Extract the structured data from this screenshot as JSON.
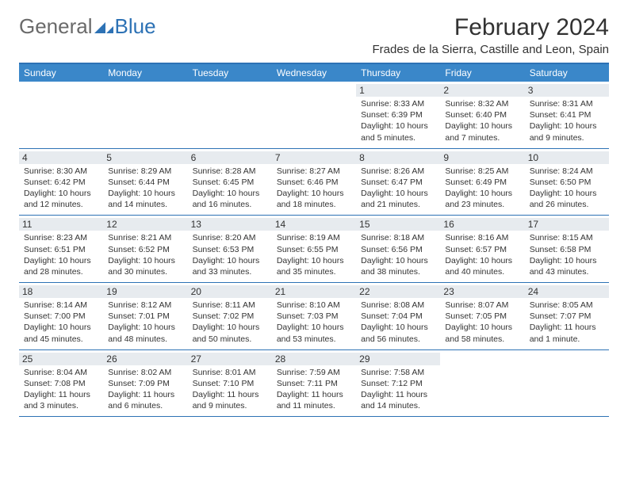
{
  "logo": {
    "general": "General",
    "blue": "Blue"
  },
  "title": "February 2024",
  "location": "Frades de la Sierra, Castille and Leon, Spain",
  "dayNames": [
    "Sunday",
    "Monday",
    "Tuesday",
    "Wednesday",
    "Thursday",
    "Friday",
    "Saturday"
  ],
  "colors": {
    "header_bg": "#3a87c9",
    "border": "#2d72b5",
    "daynum_bg": "#e7ebef",
    "text": "#333333",
    "logo_gray": "#6a6a6a",
    "logo_blue": "#2d72b5"
  },
  "weeks": [
    [
      {
        "empty": true
      },
      {
        "empty": true
      },
      {
        "empty": true
      },
      {
        "empty": true
      },
      {
        "n": "1",
        "sr": "Sunrise: 8:33 AM",
        "ss": "Sunset: 6:39 PM",
        "d1": "Daylight: 10 hours",
        "d2": "and 5 minutes."
      },
      {
        "n": "2",
        "sr": "Sunrise: 8:32 AM",
        "ss": "Sunset: 6:40 PM",
        "d1": "Daylight: 10 hours",
        "d2": "and 7 minutes."
      },
      {
        "n": "3",
        "sr": "Sunrise: 8:31 AM",
        "ss": "Sunset: 6:41 PM",
        "d1": "Daylight: 10 hours",
        "d2": "and 9 minutes."
      }
    ],
    [
      {
        "n": "4",
        "sr": "Sunrise: 8:30 AM",
        "ss": "Sunset: 6:42 PM",
        "d1": "Daylight: 10 hours",
        "d2": "and 12 minutes."
      },
      {
        "n": "5",
        "sr": "Sunrise: 8:29 AM",
        "ss": "Sunset: 6:44 PM",
        "d1": "Daylight: 10 hours",
        "d2": "and 14 minutes."
      },
      {
        "n": "6",
        "sr": "Sunrise: 8:28 AM",
        "ss": "Sunset: 6:45 PM",
        "d1": "Daylight: 10 hours",
        "d2": "and 16 minutes."
      },
      {
        "n": "7",
        "sr": "Sunrise: 8:27 AM",
        "ss": "Sunset: 6:46 PM",
        "d1": "Daylight: 10 hours",
        "d2": "and 18 minutes."
      },
      {
        "n": "8",
        "sr": "Sunrise: 8:26 AM",
        "ss": "Sunset: 6:47 PM",
        "d1": "Daylight: 10 hours",
        "d2": "and 21 minutes."
      },
      {
        "n": "9",
        "sr": "Sunrise: 8:25 AM",
        "ss": "Sunset: 6:49 PM",
        "d1": "Daylight: 10 hours",
        "d2": "and 23 minutes."
      },
      {
        "n": "10",
        "sr": "Sunrise: 8:24 AM",
        "ss": "Sunset: 6:50 PM",
        "d1": "Daylight: 10 hours",
        "d2": "and 26 minutes."
      }
    ],
    [
      {
        "n": "11",
        "sr": "Sunrise: 8:23 AM",
        "ss": "Sunset: 6:51 PM",
        "d1": "Daylight: 10 hours",
        "d2": "and 28 minutes."
      },
      {
        "n": "12",
        "sr": "Sunrise: 8:21 AM",
        "ss": "Sunset: 6:52 PM",
        "d1": "Daylight: 10 hours",
        "d2": "and 30 minutes."
      },
      {
        "n": "13",
        "sr": "Sunrise: 8:20 AM",
        "ss": "Sunset: 6:53 PM",
        "d1": "Daylight: 10 hours",
        "d2": "and 33 minutes."
      },
      {
        "n": "14",
        "sr": "Sunrise: 8:19 AM",
        "ss": "Sunset: 6:55 PM",
        "d1": "Daylight: 10 hours",
        "d2": "and 35 minutes."
      },
      {
        "n": "15",
        "sr": "Sunrise: 8:18 AM",
        "ss": "Sunset: 6:56 PM",
        "d1": "Daylight: 10 hours",
        "d2": "and 38 minutes."
      },
      {
        "n": "16",
        "sr": "Sunrise: 8:16 AM",
        "ss": "Sunset: 6:57 PM",
        "d1": "Daylight: 10 hours",
        "d2": "and 40 minutes."
      },
      {
        "n": "17",
        "sr": "Sunrise: 8:15 AM",
        "ss": "Sunset: 6:58 PM",
        "d1": "Daylight: 10 hours",
        "d2": "and 43 minutes."
      }
    ],
    [
      {
        "n": "18",
        "sr": "Sunrise: 8:14 AM",
        "ss": "Sunset: 7:00 PM",
        "d1": "Daylight: 10 hours",
        "d2": "and 45 minutes."
      },
      {
        "n": "19",
        "sr": "Sunrise: 8:12 AM",
        "ss": "Sunset: 7:01 PM",
        "d1": "Daylight: 10 hours",
        "d2": "and 48 minutes."
      },
      {
        "n": "20",
        "sr": "Sunrise: 8:11 AM",
        "ss": "Sunset: 7:02 PM",
        "d1": "Daylight: 10 hours",
        "d2": "and 50 minutes."
      },
      {
        "n": "21",
        "sr": "Sunrise: 8:10 AM",
        "ss": "Sunset: 7:03 PM",
        "d1": "Daylight: 10 hours",
        "d2": "and 53 minutes."
      },
      {
        "n": "22",
        "sr": "Sunrise: 8:08 AM",
        "ss": "Sunset: 7:04 PM",
        "d1": "Daylight: 10 hours",
        "d2": "and 56 minutes."
      },
      {
        "n": "23",
        "sr": "Sunrise: 8:07 AM",
        "ss": "Sunset: 7:05 PM",
        "d1": "Daylight: 10 hours",
        "d2": "and 58 minutes."
      },
      {
        "n": "24",
        "sr": "Sunrise: 8:05 AM",
        "ss": "Sunset: 7:07 PM",
        "d1": "Daylight: 11 hours",
        "d2": "and 1 minute."
      }
    ],
    [
      {
        "n": "25",
        "sr": "Sunrise: 8:04 AM",
        "ss": "Sunset: 7:08 PM",
        "d1": "Daylight: 11 hours",
        "d2": "and 3 minutes."
      },
      {
        "n": "26",
        "sr": "Sunrise: 8:02 AM",
        "ss": "Sunset: 7:09 PM",
        "d1": "Daylight: 11 hours",
        "d2": "and 6 minutes."
      },
      {
        "n": "27",
        "sr": "Sunrise: 8:01 AM",
        "ss": "Sunset: 7:10 PM",
        "d1": "Daylight: 11 hours",
        "d2": "and 9 minutes."
      },
      {
        "n": "28",
        "sr": "Sunrise: 7:59 AM",
        "ss": "Sunset: 7:11 PM",
        "d1": "Daylight: 11 hours",
        "d2": "and 11 minutes."
      },
      {
        "n": "29",
        "sr": "Sunrise: 7:58 AM",
        "ss": "Sunset: 7:12 PM",
        "d1": "Daylight: 11 hours",
        "d2": "and 14 minutes."
      },
      {
        "empty": true
      },
      {
        "empty": true
      }
    ]
  ]
}
